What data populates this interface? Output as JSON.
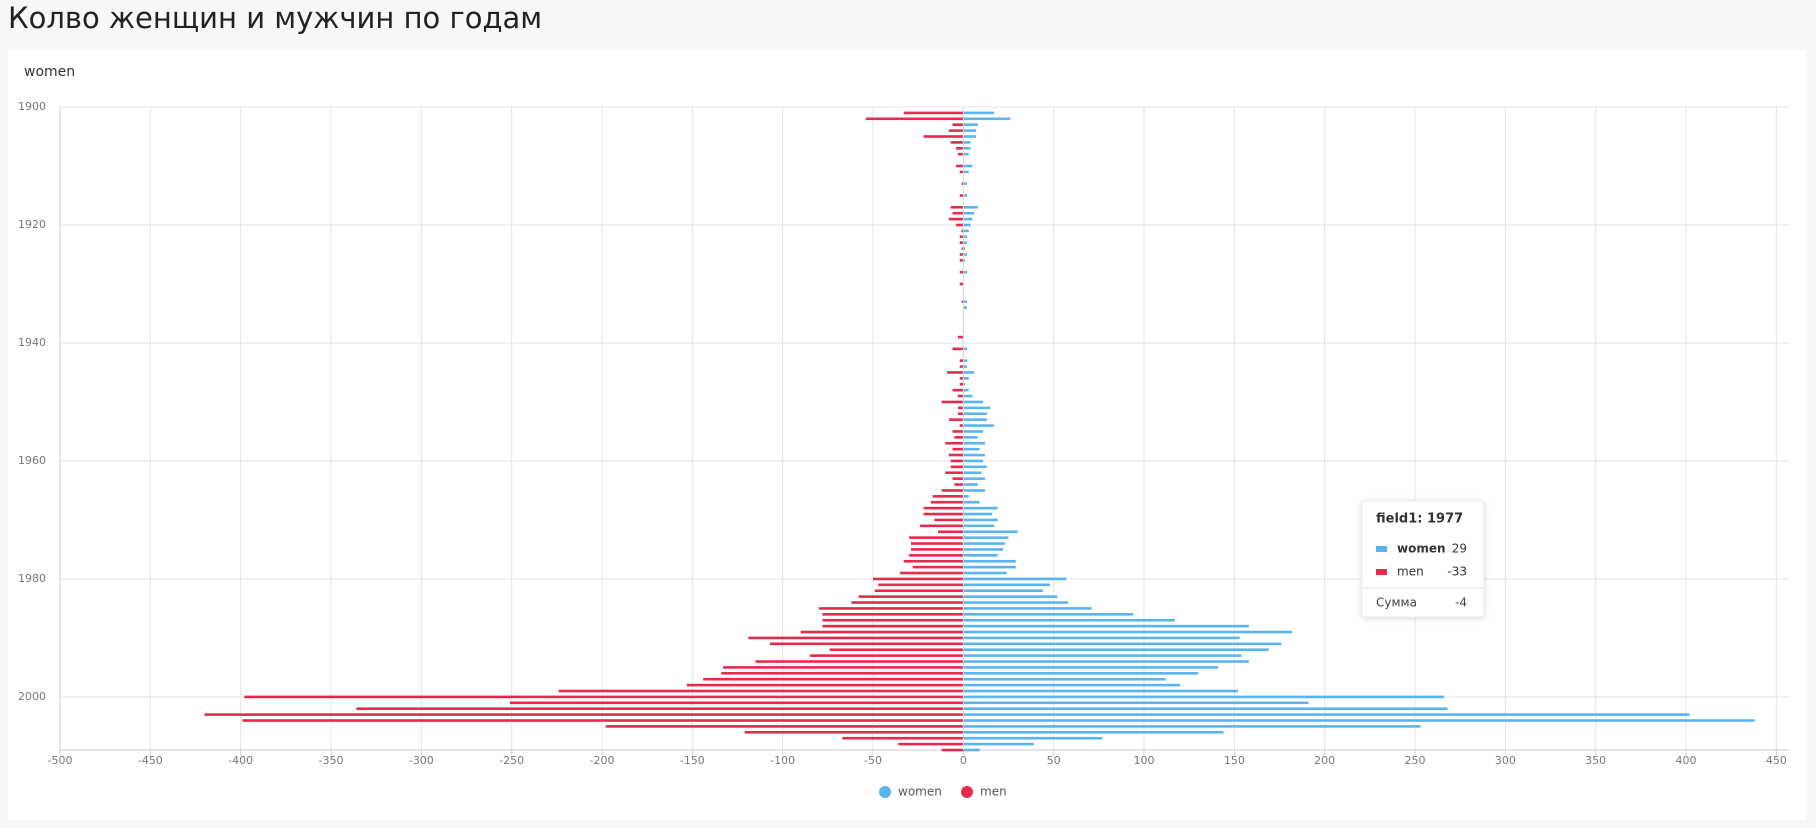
{
  "chart_data": {
    "type": "bar",
    "orientation": "horizontal",
    "title": "Колво женщин и мужчин по годам",
    "subtitle": "women",
    "y": [
      1901,
      1902,
      1903,
      1904,
      1905,
      1906,
      1907,
      1908,
      1910,
      1911,
      1913,
      1915,
      1917,
      1918,
      1919,
      1920,
      1921,
      1922,
      1923,
      1924,
      1925,
      1926,
      1928,
      1930,
      1933,
      1934,
      1939,
      1941,
      1943,
      1944,
      1945,
      1946,
      1947,
      1948,
      1949,
      1950,
      1951,
      1952,
      1953,
      1954,
      1955,
      1956,
      1957,
      1958,
      1959,
      1960,
      1961,
      1962,
      1963,
      1964,
      1965,
      1966,
      1967,
      1968,
      1969,
      1970,
      1971,
      1972,
      1973,
      1974,
      1975,
      1976,
      1977,
      1978,
      1979,
      1980,
      1981,
      1982,
      1983,
      1984,
      1985,
      1986,
      1987,
      1988,
      1989,
      1990,
      1991,
      1992,
      1993,
      1994,
      1995,
      1996,
      1997,
      1998,
      1999,
      2000,
      2001,
      2002,
      2003,
      2004,
      2005,
      2006,
      2007,
      2008,
      2009
    ],
    "series": [
      {
        "name": "women",
        "color": "#5ab4ee",
        "values": [
          17,
          26,
          8,
          7,
          7,
          4,
          4,
          3,
          5,
          3,
          2,
          2,
          8,
          6,
          5,
          4,
          3,
          2,
          2,
          1,
          2,
          1,
          2,
          null,
          2,
          2,
          null,
          2,
          2,
          2,
          6,
          3,
          1,
          3,
          5,
          11,
          15,
          13,
          13,
          17,
          11,
          8,
          12,
          9,
          12,
          11,
          13,
          10,
          12,
          8,
          12,
          3,
          9,
          19,
          16,
          19,
          17,
          30,
          25,
          23,
          22,
          19,
          29,
          29,
          24,
          57,
          48,
          44,
          52,
          58,
          71,
          94,
          117,
          158,
          182,
          153,
          176,
          169,
          154,
          158,
          141,
          130,
          112,
          120,
          152,
          266,
          191,
          268,
          402,
          438,
          253,
          144,
          77,
          39,
          9
        ]
      },
      {
        "name": "men",
        "color": "#e8294e",
        "values": [
          -33,
          -54,
          -6,
          -8,
          -22,
          -7,
          -4,
          -3,
          -4,
          -2,
          -1,
          -2,
          -7,
          -6,
          -8,
          -4,
          -1,
          -2,
          -2,
          -1,
          -2,
          -2,
          -2,
          -2,
          -1,
          null,
          -3,
          -6,
          -2,
          -2,
          -9,
          -2,
          -2,
          -6,
          -3,
          -12,
          -3,
          -3,
          -8,
          -2,
          -6,
          -5,
          -10,
          -6,
          -8,
          -7,
          -7,
          -10,
          -6,
          -5,
          -12,
          -17,
          -18,
          -22,
          -22,
          -16,
          -24,
          -14,
          -30,
          -29,
          -29,
          -30,
          -33,
          -28,
          -35,
          -50,
          -47,
          -49,
          -58,
          -62,
          -80,
          -78,
          -78,
          -78,
          -90,
          -119,
          -107,
          -74,
          -85,
          -115,
          -133,
          -134,
          -144,
          -153,
          -224,
          -398,
          -251,
          -336,
          -420,
          -399,
          -198,
          -121,
          -67,
          -36,
          -12
        ]
      }
    ],
    "xlim": [
      -500,
      457
    ],
    "xticks": [
      -500,
      -450,
      -400,
      -350,
      -300,
      -250,
      -200,
      -150,
      -100,
      -50,
      0,
      50,
      100,
      150,
      200,
      250,
      300,
      350,
      400,
      450
    ],
    "ylim": [
      1900,
      2009
    ],
    "yticks": [
      1900,
      1920,
      1940,
      1960,
      1980,
      2000
    ],
    "grid": true,
    "legend": "bottom",
    "tooltip": {
      "title": "field1: 1977",
      "values": [
        29,
        -33
      ],
      "sum_label": "Сумма",
      "sum": -4
    }
  }
}
